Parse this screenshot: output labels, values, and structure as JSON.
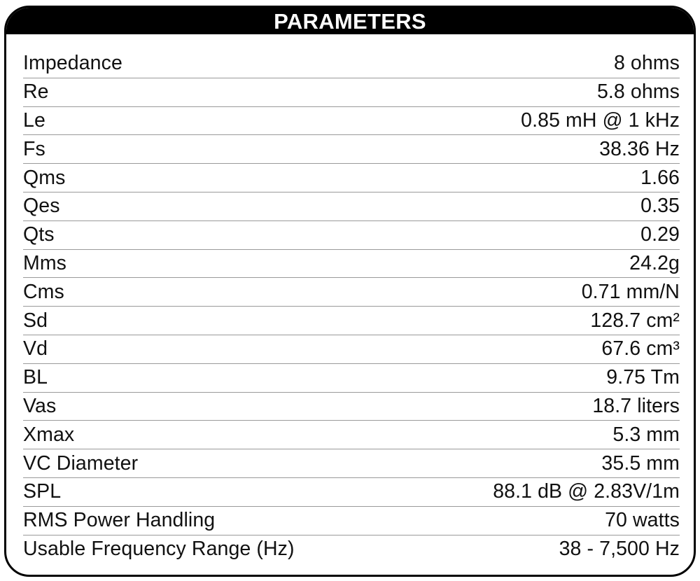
{
  "title": "PARAMETERS",
  "rows": [
    {
      "label": "Impedance",
      "value": "8 ohms"
    },
    {
      "label": "Re",
      "value": "5.8 ohms"
    },
    {
      "label": "Le",
      "value": "0.85 mH @ 1 kHz"
    },
    {
      "label": "Fs",
      "value": "38.36 Hz"
    },
    {
      "label": "Qms",
      "value": "1.66"
    },
    {
      "label": "Qes",
      "value": "0.35"
    },
    {
      "label": "Qts",
      "value": "0.29"
    },
    {
      "label": "Mms",
      "value": "24.2g"
    },
    {
      "label": "Cms",
      "value": "0.71 mm/N"
    },
    {
      "label": "Sd",
      "value": "128.7 cm²"
    },
    {
      "label": "Vd",
      "value": "67.6 cm³"
    },
    {
      "label": "BL",
      "value": "9.75 Tm"
    },
    {
      "label": "Vas",
      "value": "18.7 liters"
    },
    {
      "label": "Xmax",
      "value": "5.3 mm"
    },
    {
      "label": "VC Diameter",
      "value": "35.5 mm"
    },
    {
      "label": "SPL",
      "value": "88.1 dB @ 2.83V/1m"
    },
    {
      "label": "RMS Power Handling",
      "value": "70 watts"
    },
    {
      "label": "Usable Frequency Range (Hz)",
      "value": "38 - 7,500 Hz"
    }
  ]
}
